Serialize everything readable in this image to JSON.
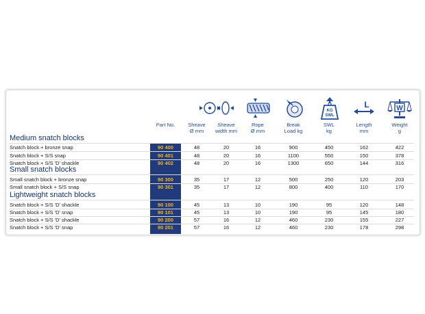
{
  "columns": {
    "part_no": "Part No.",
    "sheave_dia": [
      "Sheave",
      "Ø mm"
    ],
    "sheave_width": [
      "Sheave",
      "width mm"
    ],
    "rope_dia": [
      "Rope",
      "Ø mm"
    ],
    "break_load": [
      "Break",
      "Load kg"
    ],
    "swl": [
      "SWL",
      "kg"
    ],
    "length": [
      "Length",
      "mm"
    ],
    "weight": [
      "Weight",
      "g"
    ]
  },
  "icons": {
    "sheave_dia": "sheave-diameter-icon",
    "sheave_width": "sheave-width-icon",
    "rope_dia": "rope-diameter-icon",
    "break_load": "break-load-icon",
    "swl": "swl-weight-icon",
    "length": "length-icon",
    "weight": "scales-icon",
    "swl_text": [
      "KG",
      "SWL"
    ],
    "length_text": "L",
    "weight_text": "W"
  },
  "colors": {
    "part_bg": "#213a7c",
    "part_text": "#f2b418",
    "heading": "#14306e",
    "header_text": "#234a9a"
  },
  "sections": [
    {
      "title": "Medium snatch blocks",
      "rows": [
        {
          "name": "Snatch block + bronze snap",
          "part": "90 400",
          "sheave_dia": "48",
          "sheave_width": "20",
          "rope": "16",
          "break": "900",
          "swl": "450",
          "length": "162",
          "weight": "422"
        },
        {
          "name": "Snatch block + S/S snap",
          "part": "90 401",
          "sheave_dia": "48",
          "sheave_width": "20",
          "rope": "16",
          "break": "1100",
          "swl": "550",
          "length": "150",
          "weight": "378"
        },
        {
          "name": "Snatch block + S/S 'D' shackle",
          "part": "90 402",
          "sheave_dia": "48",
          "sheave_width": "20",
          "rope": "16",
          "break": "1300",
          "swl": "650",
          "length": "144",
          "weight": "316"
        }
      ]
    },
    {
      "title": "Small snatch blocks",
      "rows": [
        {
          "name": "Small snatch block + bronze snap",
          "part": "90 300",
          "sheave_dia": "35",
          "sheave_width": "17",
          "rope": "12",
          "break": "500",
          "swl": "250",
          "length": "120",
          "weight": "203"
        },
        {
          "name": "Small snatch block + S/S snap",
          "part": "90 301",
          "sheave_dia": "35",
          "sheave_width": "17",
          "rope": "12",
          "break": "800",
          "swl": "400",
          "length": "110",
          "weight": "170"
        }
      ]
    },
    {
      "title": "Lightweight snatch blocks",
      "rows": [
        {
          "name": "Snatch block + S/S 'D' shackle",
          "part": "90 100",
          "sheave_dia": "45",
          "sheave_width": "13",
          "rope": "10",
          "break": "190",
          "swl": "95",
          "length": "120",
          "weight": "148"
        },
        {
          "name": "Snatch block + S/S 'D' snap",
          "part": "90 101",
          "sheave_dia": "45",
          "sheave_width": "13",
          "rope": "10",
          "break": "190",
          "swl": "95",
          "length": "145",
          "weight": "180"
        },
        {
          "name": "Snatch block + S/S 'D' shackle",
          "part": "90 200",
          "sheave_dia": "57",
          "sheave_width": "16",
          "rope": "12",
          "break": "460",
          "swl": "230",
          "length": "155",
          "weight": "227"
        },
        {
          "name": "Snatch block + S/S 'D' snap",
          "part": "90 201",
          "sheave_dia": "57",
          "sheave_width": "16",
          "rope": "12",
          "break": "460",
          "swl": "230",
          "length": "178",
          "weight": "298"
        }
      ]
    }
  ]
}
